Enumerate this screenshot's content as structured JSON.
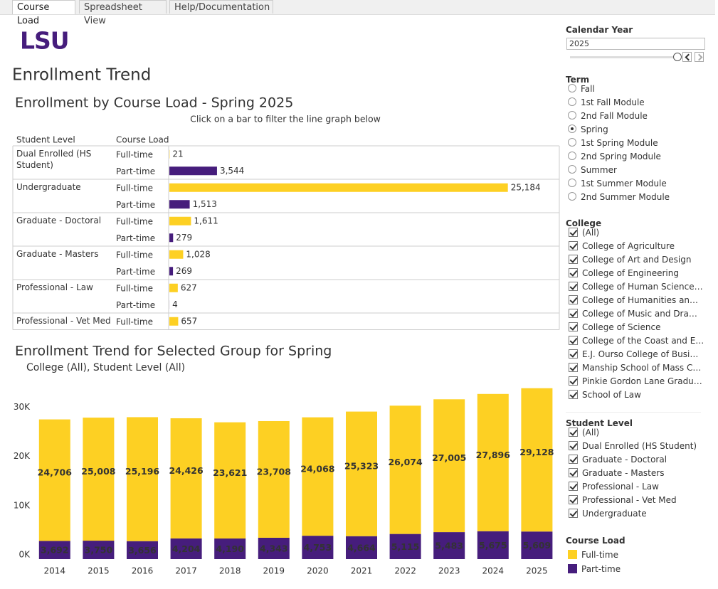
{
  "tabs": [
    "Course Load",
    "Spreadsheet View",
    "Help/Documentation"
  ],
  "logo": "LSU",
  "title": "Enrollment Trend",
  "chart_data": [
    {
      "type": "bar",
      "orientation": "horizontal",
      "title": "Enrollment by Course Load - Spring 2025",
      "subtitle": "Click on a bar to filter the line graph below",
      "column_headers": [
        "Student Level",
        "Course Load"
      ],
      "categories": [
        "Dual Enrolled (HS Student)",
        "Undergraduate",
        "Graduate - Doctoral",
        "Graduate - Masters",
        "Professional - Law",
        "Professional - Vet Med"
      ],
      "series": [
        {
          "name": "Full-time",
          "color": "#fdd023",
          "values": [
            21,
            25184,
            1611,
            1028,
            627,
            657
          ],
          "value_labels": [
            "21",
            "25,184",
            "1,611",
            "1,028",
            "627",
            "657"
          ]
        },
        {
          "name": "Part-time",
          "color": "#461d7c",
          "values": [
            3544,
            1513,
            279,
            269,
            4,
            null
          ],
          "value_labels": [
            "3,544",
            "1,513",
            "279",
            "269",
            "4",
            null
          ]
        }
      ],
      "xlim": [
        0,
        25200
      ]
    },
    {
      "type": "stacked_bar",
      "title": "Enrollment Trend for Selected Group for Spring",
      "subtitle": "College (All), Student Level (All)",
      "categories": [
        "2014",
        "2015",
        "2016",
        "2017",
        "2018",
        "2019",
        "2020",
        "2021",
        "2022",
        "2023",
        "2024",
        "2025"
      ],
      "series": [
        {
          "name": "Full-time",
          "color": "#fdd023",
          "values": [
            24706,
            25008,
            25196,
            24426,
            23621,
            23708,
            24068,
            25323,
            26074,
            27005,
            27896,
            29128
          ],
          "value_labels": [
            "24,706",
            "25,008",
            "25,196",
            "24,426",
            "23,621",
            "23,708",
            "24,068",
            "25,323",
            "26,074",
            "27,005",
            "27,896",
            "29,128"
          ]
        },
        {
          "name": "Part-time",
          "color": "#461d7c",
          "values": [
            3692,
            3750,
            3656,
            4204,
            4190,
            4343,
            4753,
            4664,
            5115,
            5483,
            5675,
            5609
          ],
          "value_labels": [
            "3,692",
            "3,750",
            "3,656",
            "4,204",
            "4,190",
            "4,343",
            "4,753",
            "4,664",
            "5,115",
            "5,483",
            "5,675",
            "5,609"
          ]
        }
      ],
      "ylim": [
        0,
        36000
      ],
      "yticks": [
        {
          "value": 0,
          "label": "0K"
        },
        {
          "value": 10000,
          "label": "10K"
        },
        {
          "value": 20000,
          "label": "20K"
        },
        {
          "value": 30000,
          "label": "30K"
        }
      ],
      "grid": false,
      "legend_title": "Course Load"
    }
  ],
  "filters": {
    "calendar_year": {
      "title": "Calendar Year",
      "value": "2025"
    },
    "term": {
      "title": "Term",
      "options": [
        {
          "label": "Fall",
          "checked": false
        },
        {
          "label": "1st Fall Module",
          "checked": false
        },
        {
          "label": "2nd Fall Module",
          "checked": false
        },
        {
          "label": "Spring",
          "checked": true
        },
        {
          "label": "1st Spring Module",
          "checked": false
        },
        {
          "label": "2nd Spring Module",
          "checked": false
        },
        {
          "label": "Summer",
          "checked": false
        },
        {
          "label": "1st Summer Module",
          "checked": false
        },
        {
          "label": "2nd Summer Module",
          "checked": false
        }
      ]
    },
    "college": {
      "title": "College",
      "options": [
        {
          "label": "(All)",
          "checked": true
        },
        {
          "label": "College of Agriculture",
          "checked": true
        },
        {
          "label": "College of Art and Design",
          "checked": true
        },
        {
          "label": "College of Engineering",
          "checked": true
        },
        {
          "label": "College of Human Science…",
          "checked": true
        },
        {
          "label": "College of Humanities an…",
          "checked": true
        },
        {
          "label": "College of Music and Dra…",
          "checked": true
        },
        {
          "label": "College of Science",
          "checked": true
        },
        {
          "label": "College of the Coast and E…",
          "checked": true
        },
        {
          "label": "E.J. Ourso College of Busi…",
          "checked": true
        },
        {
          "label": "Manship School of Mass C…",
          "checked": true
        },
        {
          "label": "Pinkie Gordon Lane Gradu…",
          "checked": true
        },
        {
          "label": "School of Law",
          "checked": true
        }
      ]
    },
    "student_level": {
      "title": "Student Level",
      "options": [
        {
          "label": "(All)",
          "checked": true
        },
        {
          "label": "Dual Enrolled (HS Student)",
          "checked": true
        },
        {
          "label": "Graduate - Doctoral",
          "checked": true
        },
        {
          "label": "Graduate - Masters",
          "checked": true
        },
        {
          "label": "Professional - Law",
          "checked": true
        },
        {
          "label": "Professional - Vet Med",
          "checked": true
        },
        {
          "label": "Undergraduate",
          "checked": true
        }
      ]
    }
  }
}
